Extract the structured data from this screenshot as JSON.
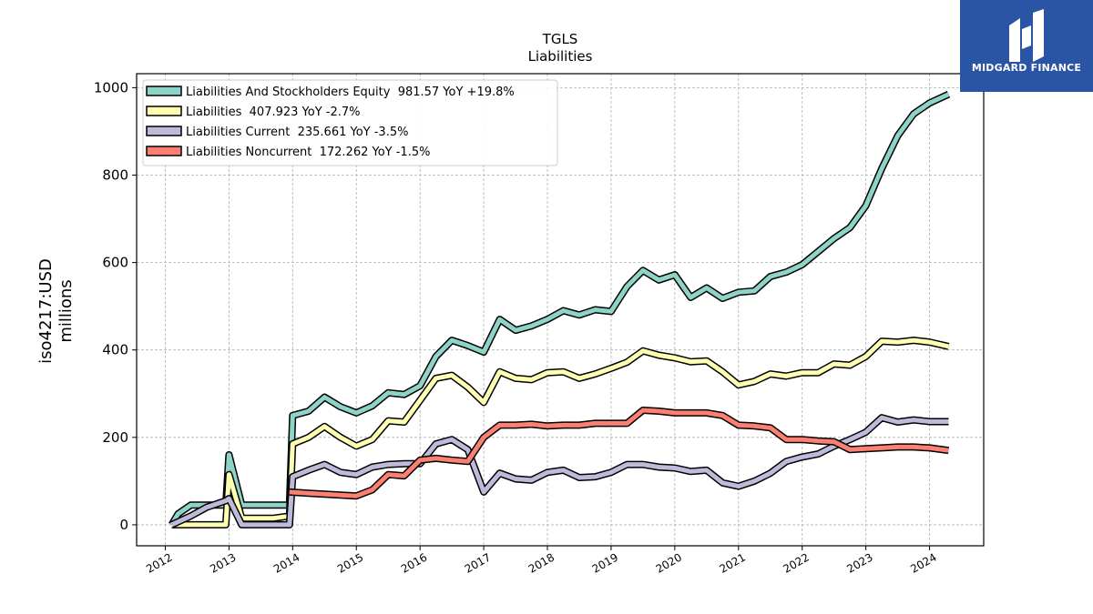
{
  "logo": {
    "text": "MIDGARD FINANCE"
  },
  "chart_data": {
    "type": "line",
    "title": "TGLS",
    "subtitle": "Liabilities",
    "ylabel_line1": "iso4217:USD",
    "ylabel_line2": "millions",
    "xlim": [
      2011.55,
      2024.85
    ],
    "ylim": [
      -48,
      1032
    ],
    "x_ticks": [
      2012,
      2013,
      2014,
      2015,
      2016,
      2017,
      2018,
      2019,
      2020,
      2021,
      2022,
      2023,
      2024
    ],
    "x_tick_labels": [
      "2012",
      "2013",
      "2014",
      "2015",
      "2016",
      "2017",
      "2018",
      "2019",
      "2020",
      "2021",
      "2022",
      "2023",
      "2024"
    ],
    "y_ticks": [
      0,
      200,
      400,
      600,
      800,
      1000
    ],
    "y_tick_labels": [
      "0",
      "200",
      "400",
      "600",
      "800",
      "1000"
    ],
    "grid": true,
    "legend_position": "top-left",
    "series": [
      {
        "name": "Liabilities And Stockholders Equity  981.57 YoY +19.8%",
        "color": "#8dd3c7",
        "x": [
          2012.1,
          2012.2,
          2012.4,
          2012.65,
          2012.95,
          2013.0,
          2013.2,
          2013.45,
          2013.7,
          2013.95,
          2014.0,
          2014.25,
          2014.5,
          2014.75,
          2015.0,
          2015.25,
          2015.5,
          2015.75,
          2016.0,
          2016.25,
          2016.5,
          2016.75,
          2017.0,
          2017.25,
          2017.5,
          2017.75,
          2018.0,
          2018.25,
          2018.5,
          2018.75,
          2019.0,
          2019.25,
          2019.5,
          2019.75,
          2020.0,
          2020.25,
          2020.5,
          2020.75,
          2021.0,
          2021.25,
          2021.5,
          2021.75,
          2022.0,
          2022.25,
          2022.5,
          2022.75,
          2023.0,
          2023.25,
          2023.5,
          2023.75,
          2024.0,
          2024.3
        ],
        "y": [
          0,
          25,
          45,
          45,
          45,
          160,
          45,
          45,
          45,
          45,
          250,
          260,
          292,
          270,
          256,
          272,
          302,
          298,
          318,
          385,
          422,
          410,
          395,
          470,
          445,
          455,
          470,
          490,
          480,
          492,
          488,
          545,
          582,
          560,
          572,
          520,
          542,
          518,
          532,
          535,
          568,
          578,
          595,
          625,
          655,
          680,
          730,
          815,
          890,
          940,
          965,
          985
        ]
      },
      {
        "name": "Liabilities  407.923 YoY -2.7%",
        "color": "#ffffb3",
        "x": [
          2012.1,
          2012.4,
          2012.65,
          2012.95,
          2013.0,
          2013.2,
          2013.45,
          2013.7,
          2013.95,
          2014.0,
          2014.25,
          2014.5,
          2014.75,
          2015.0,
          2015.25,
          2015.5,
          2015.75,
          2016.0,
          2016.25,
          2016.5,
          2016.75,
          2017.0,
          2017.25,
          2017.5,
          2017.75,
          2018.0,
          2018.25,
          2018.5,
          2018.75,
          2019.0,
          2019.25,
          2019.5,
          2019.75,
          2020.0,
          2020.25,
          2020.5,
          2020.75,
          2021.0,
          2021.25,
          2021.5,
          2021.75,
          2022.0,
          2022.25,
          2022.5,
          2022.75,
          2023.0,
          2023.25,
          2023.5,
          2023.75,
          2024.0,
          2024.3
        ],
        "y": [
          0,
          0,
          0,
          0,
          115,
          15,
          15,
          15,
          20,
          185,
          200,
          225,
          200,
          180,
          195,
          238,
          235,
          285,
          335,
          342,
          315,
          280,
          350,
          335,
          332,
          348,
          350,
          335,
          345,
          358,
          372,
          398,
          388,
          382,
          373,
          375,
          350,
          320,
          328,
          345,
          340,
          348,
          348,
          368,
          365,
          385,
          420,
          418,
          422,
          418,
          408
        ]
      },
      {
        "name": "Liabilities Current  235.661 YoY -3.5%",
        "color": "#bebada",
        "x": [
          2012.1,
          2012.4,
          2012.65,
          2012.95,
          2013.0,
          2013.2,
          2013.45,
          2013.7,
          2013.95,
          2014.0,
          2014.25,
          2014.5,
          2014.75,
          2015.0,
          2015.25,
          2015.5,
          2015.75,
          2016.0,
          2016.25,
          2016.5,
          2016.75,
          2017.0,
          2017.25,
          2017.5,
          2017.75,
          2018.0,
          2018.25,
          2018.5,
          2018.75,
          2019.0,
          2019.25,
          2019.5,
          2019.75,
          2020.0,
          2020.25,
          2020.5,
          2020.75,
          2021.0,
          2021.25,
          2021.5,
          2021.75,
          2022.0,
          2022.25,
          2022.5,
          2022.75,
          2023.0,
          2023.25,
          2023.5,
          2023.75,
          2024.0,
          2024.3
        ],
        "y": [
          0,
          20,
          40,
          55,
          60,
          0,
          0,
          0,
          0,
          110,
          125,
          138,
          120,
          115,
          132,
          138,
          140,
          140,
          185,
          195,
          172,
          75,
          118,
          105,
          102,
          120,
          125,
          108,
          110,
          120,
          138,
          138,
          132,
          130,
          122,
          125,
          96,
          88,
          100,
          118,
          145,
          155,
          162,
          180,
          195,
          212,
          245,
          235,
          240,
          236,
          236
        ]
      },
      {
        "name": "Liabilities Noncurrent  172.262 YoY -1.5%",
        "color": "#fb8072",
        "x": [
          2013.95,
          2014.25,
          2014.5,
          2014.75,
          2015.0,
          2015.25,
          2015.5,
          2015.75,
          2016.0,
          2016.25,
          2016.5,
          2016.75,
          2017.0,
          2017.25,
          2017.5,
          2017.75,
          2018.0,
          2018.25,
          2018.5,
          2018.75,
          2019.0,
          2019.25,
          2019.5,
          2019.75,
          2020.0,
          2020.25,
          2020.5,
          2020.75,
          2021.0,
          2021.25,
          2021.5,
          2021.75,
          2022.0,
          2022.25,
          2022.5,
          2022.75,
          2023.0,
          2023.25,
          2023.5,
          2023.75,
          2024.0,
          2024.3
        ],
        "y": [
          75,
          72,
          70,
          68,
          66,
          80,
          115,
          112,
          148,
          152,
          148,
          145,
          200,
          228,
          228,
          230,
          226,
          228,
          228,
          232,
          232,
          232,
          262,
          260,
          256,
          256,
          256,
          250,
          228,
          226,
          222,
          195,
          195,
          192,
          190,
          172,
          174,
          176,
          178,
          178,
          176,
          170
        ]
      }
    ]
  }
}
